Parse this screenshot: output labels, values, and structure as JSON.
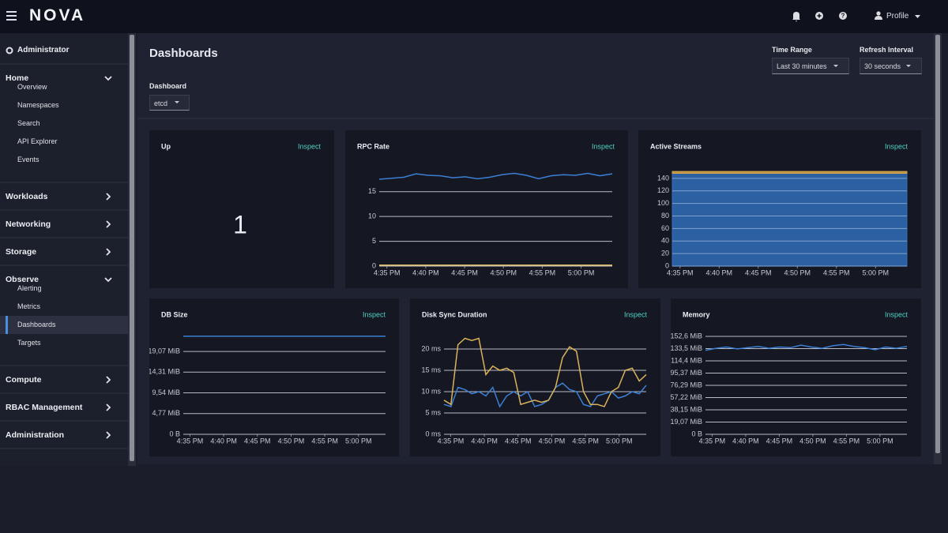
{
  "header": {
    "brand": "NOVA",
    "profile": "Profile"
  },
  "sidebar": {
    "role": "Administrator",
    "sections": [
      {
        "label": "Home",
        "items": [
          "Overview",
          "Namespaces",
          "Search",
          "API Explorer",
          "Events"
        ]
      },
      {
        "label": "Workloads"
      },
      {
        "label": "Networking"
      },
      {
        "label": "Storage"
      },
      {
        "label": "Observe",
        "items": [
          "Alerting",
          "Metrics",
          "Dashboards",
          "Targets"
        ]
      },
      {
        "label": "Compute"
      },
      {
        "label": "RBAC Management"
      },
      {
        "label": "Administration"
      }
    ]
  },
  "toolbar": {
    "title": "Dashboards",
    "time_range": {
      "label": "Time Range",
      "value": "Last 30 minutes"
    },
    "refresh": {
      "label": "Refresh Interval",
      "value": "30 seconds"
    },
    "dashboard": {
      "label": "Dashboard",
      "value": "etcd"
    }
  },
  "panels": [
    {
      "title": "Up",
      "link": "Inspect",
      "chart": {
        "type": "stat",
        "value": 1
      }
    },
    {
      "title": "RPC Rate",
      "link": "Inspect",
      "chart": {
        "type": "line",
        "xticks": [
          "4:35 PM",
          "4:40 PM",
          "4:45 PM",
          "4:50 PM",
          "4:55 PM",
          "5:00 PM"
        ],
        "ylim": [
          0,
          21
        ],
        "yticks": [
          0,
          5,
          10,
          15
        ],
        "grid": true,
        "series": [
          {
            "color": "#3b7fd4",
            "values": [
              17.5,
              17.7,
              17.9,
              18.6,
              18.3,
              18.2,
              17.8,
              18.0,
              17.6,
              17.9,
              18.4,
              18.7,
              18.3,
              17.6,
              18.2,
              18.4,
              18.3,
              18.7,
              18.2,
              18.6
            ]
          },
          {
            "color": "#e0c060",
            "values": [
              0.2,
              0.2
            ]
          }
        ]
      }
    },
    {
      "title": "Active Streams",
      "link": "Inspect",
      "chart": {
        "type": "stacked-area",
        "xticks": [
          "4:35 PM",
          "4:40 PM",
          "4:45 PM",
          "4:50 PM",
          "4:55 PM",
          "5:00 PM"
        ],
        "ylim": [
          0,
          160
        ],
        "yticks": [
          0,
          20,
          40,
          60,
          80,
          100,
          120,
          140
        ],
        "grid": true,
        "series": [
          {
            "color": "#2f6fb8",
            "values": [
              148,
              148
            ]
          },
          {
            "color": "#d9a84a",
            "values": [
              3,
              3
            ]
          }
        ]
      }
    },
    {
      "title": "DB Size",
      "link": "Inspect",
      "chart": {
        "type": "line",
        "xticks": [
          "4:35 PM",
          "4:40 PM",
          "4:45 PM",
          "4:50 PM",
          "4:55 PM",
          "5:00 PM"
        ],
        "ylim": [
          0,
          24
        ],
        "yticks": [
          {
            "value": 0,
            "label": "0 B"
          },
          {
            "value": 4.77,
            "label": "4,77 MiB"
          },
          {
            "value": 9.54,
            "label": "9,54 MiB"
          },
          {
            "value": 14.31,
            "label": "14,31 MiB"
          },
          {
            "value": 19.07,
            "label": "19,07 MiB"
          }
        ],
        "grid": true,
        "series": [
          {
            "color": "#3b7fd4",
            "values": [
              22.6,
              22.6
            ]
          }
        ]
      }
    },
    {
      "title": "Disk Sync Duration",
      "link": "Inspect",
      "chart": {
        "type": "line",
        "xticks": [
          "4:35 PM",
          "4:40 PM",
          "4:45 PM",
          "4:50 PM",
          "4:55 PM",
          "5:00 PM"
        ],
        "ylim": [
          0,
          25
        ],
        "yticks": [
          {
            "value": 0,
            "label": "0 ms"
          },
          {
            "value": 5,
            "label": "5 ms"
          },
          {
            "value": 10,
            "label": "10 ms"
          },
          {
            "value": 15,
            "label": "15 ms"
          },
          {
            "value": 20,
            "label": "20 ms"
          }
        ],
        "grid": true,
        "series": [
          {
            "color": "#3b7fd4",
            "values": [
              7,
              6.5,
              11,
              10.5,
              9.5,
              10,
              9,
              11,
              6.5,
              9,
              10,
              9,
              10,
              6.5,
              7,
              8,
              11,
              12,
              10.5,
              10,
              7,
              6.5,
              9,
              9.5,
              10,
              8.5,
              9,
              10,
              9.5,
              11.5
            ]
          },
          {
            "color": "#d9b25a",
            "values": [
              8,
              7,
              21,
              22.5,
              22,
              22.5,
              14,
              16,
              15,
              15.5,
              14.5,
              7,
              7.5,
              8,
              7.5,
              8,
              11,
              18,
              20.5,
              19.5,
              10,
              7,
              7,
              6.5,
              10,
              11,
              15,
              15.5,
              12.5,
              14
            ]
          }
        ]
      }
    },
    {
      "title": "Memory",
      "link": "Inspect",
      "chart": {
        "type": "line",
        "xticks": [
          "4:35 PM",
          "4:40 PM",
          "4:45 PM",
          "4:50 PM",
          "4:55 PM",
          "5:00 PM"
        ],
        "ylim": [
          0,
          160
        ],
        "yticks": [
          {
            "value": 0,
            "label": "0 B"
          },
          {
            "value": 19.07,
            "label": "19,07 MiB"
          },
          {
            "value": 38.15,
            "label": "38,15 MiB"
          },
          {
            "value": 57.22,
            "label": "57,22 MiB"
          },
          {
            "value": 76.29,
            "label": "76,29 MiB"
          },
          {
            "value": 95.37,
            "label": "95,37 MiB"
          },
          {
            "value": 114.4,
            "label": "114,4 MiB"
          },
          {
            "value": 133.5,
            "label": "133,5 MiB"
          },
          {
            "value": 152.6,
            "label": "152,6 MiB"
          }
        ],
        "grid": true,
        "series": [
          {
            "color": "#3b7fd4",
            "values": [
              131,
              134,
              136,
              133,
              135,
              137,
              134,
              136,
              135,
              139,
              136,
              134,
              138,
              140,
              137,
              135,
              132,
              136,
              134,
              137
            ]
          }
        ]
      }
    }
  ]
}
